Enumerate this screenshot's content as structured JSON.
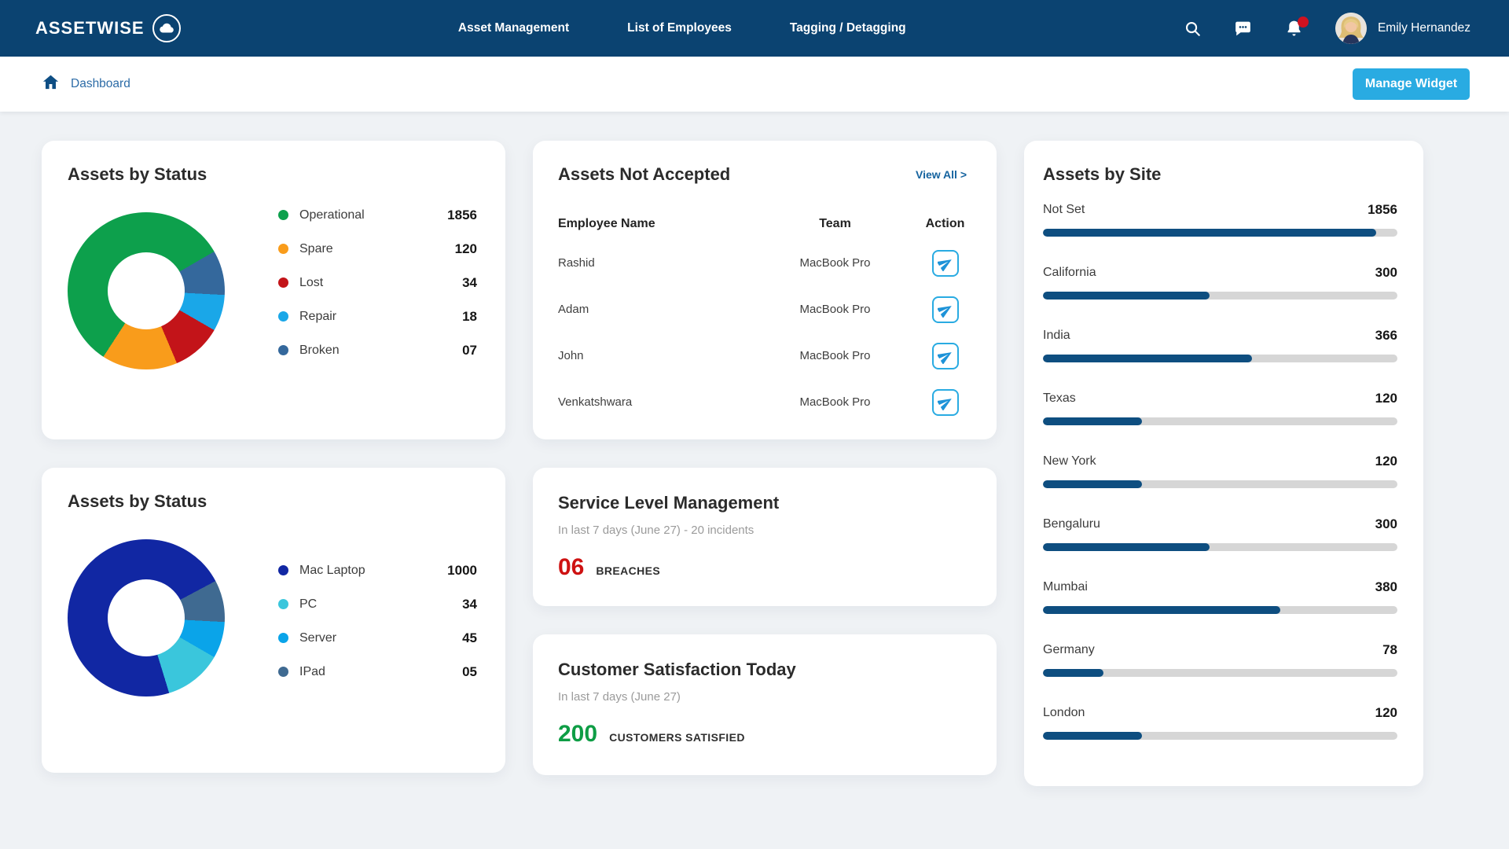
{
  "brand": {
    "name": "ASSETWISE"
  },
  "nav": {
    "items": [
      {
        "label": "Asset Management"
      },
      {
        "label": "List of Employees"
      },
      {
        "label": "Tagging / Detagging"
      }
    ],
    "user_name": "Emily Hernandez"
  },
  "breadcrumb": {
    "label": "Dashboard"
  },
  "actions": {
    "manage_widget": "Manage Widget"
  },
  "colors": {
    "navbar": "#0b4371",
    "accent": "#29abe2",
    "link": "#15639f",
    "bar_fill": "#0e4e80",
    "bar_track": "#d6d6d6",
    "metric_red": "#ce1212",
    "metric_green": "#0e9d45"
  },
  "cards": {
    "status1": {
      "title": "Assets by Status",
      "legend": [
        {
          "label": "Operational",
          "value": "1856",
          "color": "#0da04c"
        },
        {
          "label": "Spare",
          "value": "120",
          "color": "#f99c1b"
        },
        {
          "label": "Lost",
          "value": "34",
          "color": "#c31419"
        },
        {
          "label": "Repair",
          "value": "18",
          "color": "#1aa7e8"
        },
        {
          "label": "Broken",
          "value": "07",
          "color": "#34689c"
        }
      ],
      "donut_segments": [
        {
          "color": "#0da04c",
          "start": 0,
          "end": 60
        },
        {
          "color": "#34689c",
          "start": 60,
          "end": 93
        },
        {
          "color": "#1aa7e8",
          "start": 93,
          "end": 120
        },
        {
          "color": "#c31419",
          "start": 120,
          "end": 157
        },
        {
          "color": "#f99c1b",
          "start": 157,
          "end": 213
        },
        {
          "color": "#0da04c",
          "start": 213,
          "end": 360
        }
      ]
    },
    "not_accepted": {
      "title": "Assets Not Accepted",
      "view_all": "View All >",
      "columns": [
        "Employee Name",
        "Team",
        "Action"
      ],
      "rows": [
        {
          "name": "Rashid",
          "team": "MacBook Pro"
        },
        {
          "name": "Adam",
          "team": "MacBook Pro"
        },
        {
          "name": "John",
          "team": "MacBook Pro"
        },
        {
          "name": "Venkatshwara",
          "team": "MacBook Pro"
        }
      ]
    },
    "by_site": {
      "title": "Assets by Site",
      "rows": [
        {
          "label": "Not Set",
          "value": "1856",
          "pct": 94
        },
        {
          "label": "California",
          "value": "300",
          "pct": 47
        },
        {
          "label": "India",
          "value": "366",
          "pct": 59
        },
        {
          "label": "Texas",
          "value": "120",
          "pct": 28
        },
        {
          "label": "New York",
          "value": "120",
          "pct": 28
        },
        {
          "label": "Bengaluru",
          "value": "300",
          "pct": 47
        },
        {
          "label": "Mumbai",
          "value": "380",
          "pct": 67
        },
        {
          "label": "Germany",
          "value": "78",
          "pct": 17
        },
        {
          "label": "London",
          "value": "120",
          "pct": 28
        }
      ]
    },
    "status2": {
      "title": "Assets by Status",
      "legend": [
        {
          "label": "Mac Laptop",
          "value": "1000",
          "color": "#1127a3"
        },
        {
          "label": "PC",
          "value": "34",
          "color": "#3ac6dc"
        },
        {
          "label": "Server",
          "value": "45",
          "color": "#0aa4e9"
        },
        {
          "label": "IPad",
          "value": "05",
          "color": "#3f6a91"
        }
      ],
      "donut_segments": [
        {
          "color": "#1127a3",
          "start": 0,
          "end": 62
        },
        {
          "color": "#3f6a91",
          "start": 62,
          "end": 93
        },
        {
          "color": "#0aa4e9",
          "start": 93,
          "end": 120
        },
        {
          "color": "#3ac6dc",
          "start": 120,
          "end": 163
        },
        {
          "color": "#1127a3",
          "start": 163,
          "end": 360
        }
      ]
    },
    "slm": {
      "title": "Service Level Management",
      "subtitle": "In last 7 days (June 27) - 20 incidents",
      "metric_value": "06",
      "metric_label": "BREACHES",
      "metric_color": "#ce1212"
    },
    "csat": {
      "title": "Customer Satisfaction Today",
      "subtitle": "In last 7 days (June 27)",
      "metric_value": "200",
      "metric_label": "CUSTOMERS SATISFIED",
      "metric_color": "#0e9d45"
    }
  },
  "chart_data": [
    {
      "type": "pie",
      "title": "Assets by Status",
      "labels": [
        "Operational",
        "Spare",
        "Lost",
        "Repair",
        "Broken"
      ],
      "values": [
        1856,
        120,
        34,
        18,
        7
      ],
      "colors": [
        "#0da04c",
        "#f99c1b",
        "#c31419",
        "#1aa7e8",
        "#34689c"
      ],
      "legend_position": "right",
      "style": "donut"
    },
    {
      "type": "bar",
      "title": "Assets by Site",
      "categories": [
        "Not Set",
        "California",
        "India",
        "Texas",
        "New York",
        "Bengaluru",
        "Mumbai",
        "Germany",
        "London"
      ],
      "values": [
        1856,
        300,
        366,
        120,
        120,
        300,
        380,
        78,
        120
      ],
      "orientation": "horizontal",
      "bar_color": "#0e4e80"
    },
    {
      "type": "pie",
      "title": "Assets by Status",
      "labels": [
        "Mac Laptop",
        "PC",
        "Server",
        "IPad"
      ],
      "values": [
        1000,
        34,
        45,
        5
      ],
      "colors": [
        "#1127a3",
        "#3ac6dc",
        "#0aa4e9",
        "#3f6a91"
      ],
      "legend_position": "right",
      "style": "donut"
    }
  ]
}
